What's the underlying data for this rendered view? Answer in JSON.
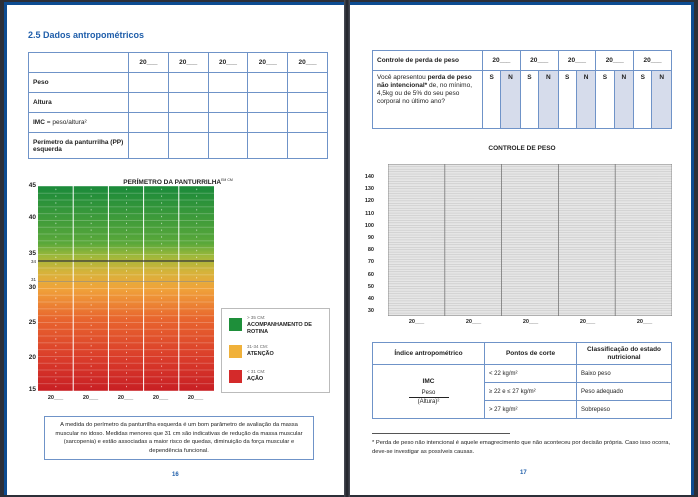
{
  "left": {
    "section_title": "2.5 Dados antropométricos",
    "year_cols": [
      "20___",
      "20___",
      "20___",
      "20___",
      "20___"
    ],
    "rows": [
      {
        "label": "Peso"
      },
      {
        "label": "Altura"
      },
      {
        "label": "IMC",
        "label_suffix": " = peso/altura²"
      },
      {
        "label": "Perímetro da panturrilha (PP) esquerda"
      }
    ],
    "calf_chart": {
      "title": "PERÍMETRO DA PANTURRILHA",
      "title_unit": "EM CM",
      "y_ticks": [
        "45",
        "40",
        "35",
        "34",
        "31",
        "30",
        "25",
        "20",
        "15"
      ],
      "x_labels": [
        "20___",
        "20___",
        "20___",
        "20___",
        "20___"
      ],
      "zones": [
        {
          "range": "> 35 CM:",
          "label": "ACOMPANHAMENTO DE ROTINA",
          "color": "#1e8f3a"
        },
        {
          "range": "31-34 CM:",
          "label": "ATENÇÃO",
          "color": "#f0b13a"
        },
        {
          "range": "< 31 CM:",
          "label": "AÇÃO",
          "color": "#d42a2a"
        }
      ]
    },
    "note": "A medida do perímetro da panturrilha esquerda é um bom parâmetro de avaliação da massa muscular no idoso. Medidas menores que 31 cm são indicativas de redução da massa muscular (sarcopenia) e estão associadas a maior risco de quedas, diminuição da força muscular e dependência funcional.",
    "page_number": "16"
  },
  "right": {
    "weight_loss": {
      "header": "Controle de perda de peso",
      "year_cols": [
        "20___",
        "20___",
        "20___",
        "20___",
        "20___"
      ],
      "yes": "S",
      "no": "N",
      "question_pre": "Você apresentou ",
      "question_bold": "perda de peso não intencional*",
      "question_post": " de, no mínimo, 4,5kg ou de 5% do seu peso corporal no último ano?"
    },
    "weight_chart": {
      "title": "CONTROLE DE PESO",
      "y_ticks": [
        "140",
        "130",
        "120",
        "110",
        "100",
        "90",
        "80",
        "70",
        "60",
        "50",
        "40",
        "30"
      ],
      "x_labels": [
        "20___",
        "20___",
        "20___",
        "20___",
        "20___"
      ]
    },
    "bmi_table": {
      "headers": [
        "Índice antropométrico",
        "Pontos de corte",
        "Classificação do estado nutricional"
      ],
      "index_label": "IMC",
      "formula_num": "Peso",
      "formula_den": "(Altura)²",
      "rows": [
        {
          "cut": "< 22 kg/m²",
          "class": "Baixo peso"
        },
        {
          "cut": "≥ 22 e ≤ 27 kg/m²",
          "class": "Peso adequado"
        },
        {
          "cut": "> 27 kg/m²",
          "class": "Sobrepeso"
        }
      ]
    },
    "footnote": "* Perda de peso não intencional é aquele emagrecimento que não aconteceu por decisão própria. Caso isso ocorra, deve-se investigar as possíveis causas.",
    "page_number": "17"
  }
}
